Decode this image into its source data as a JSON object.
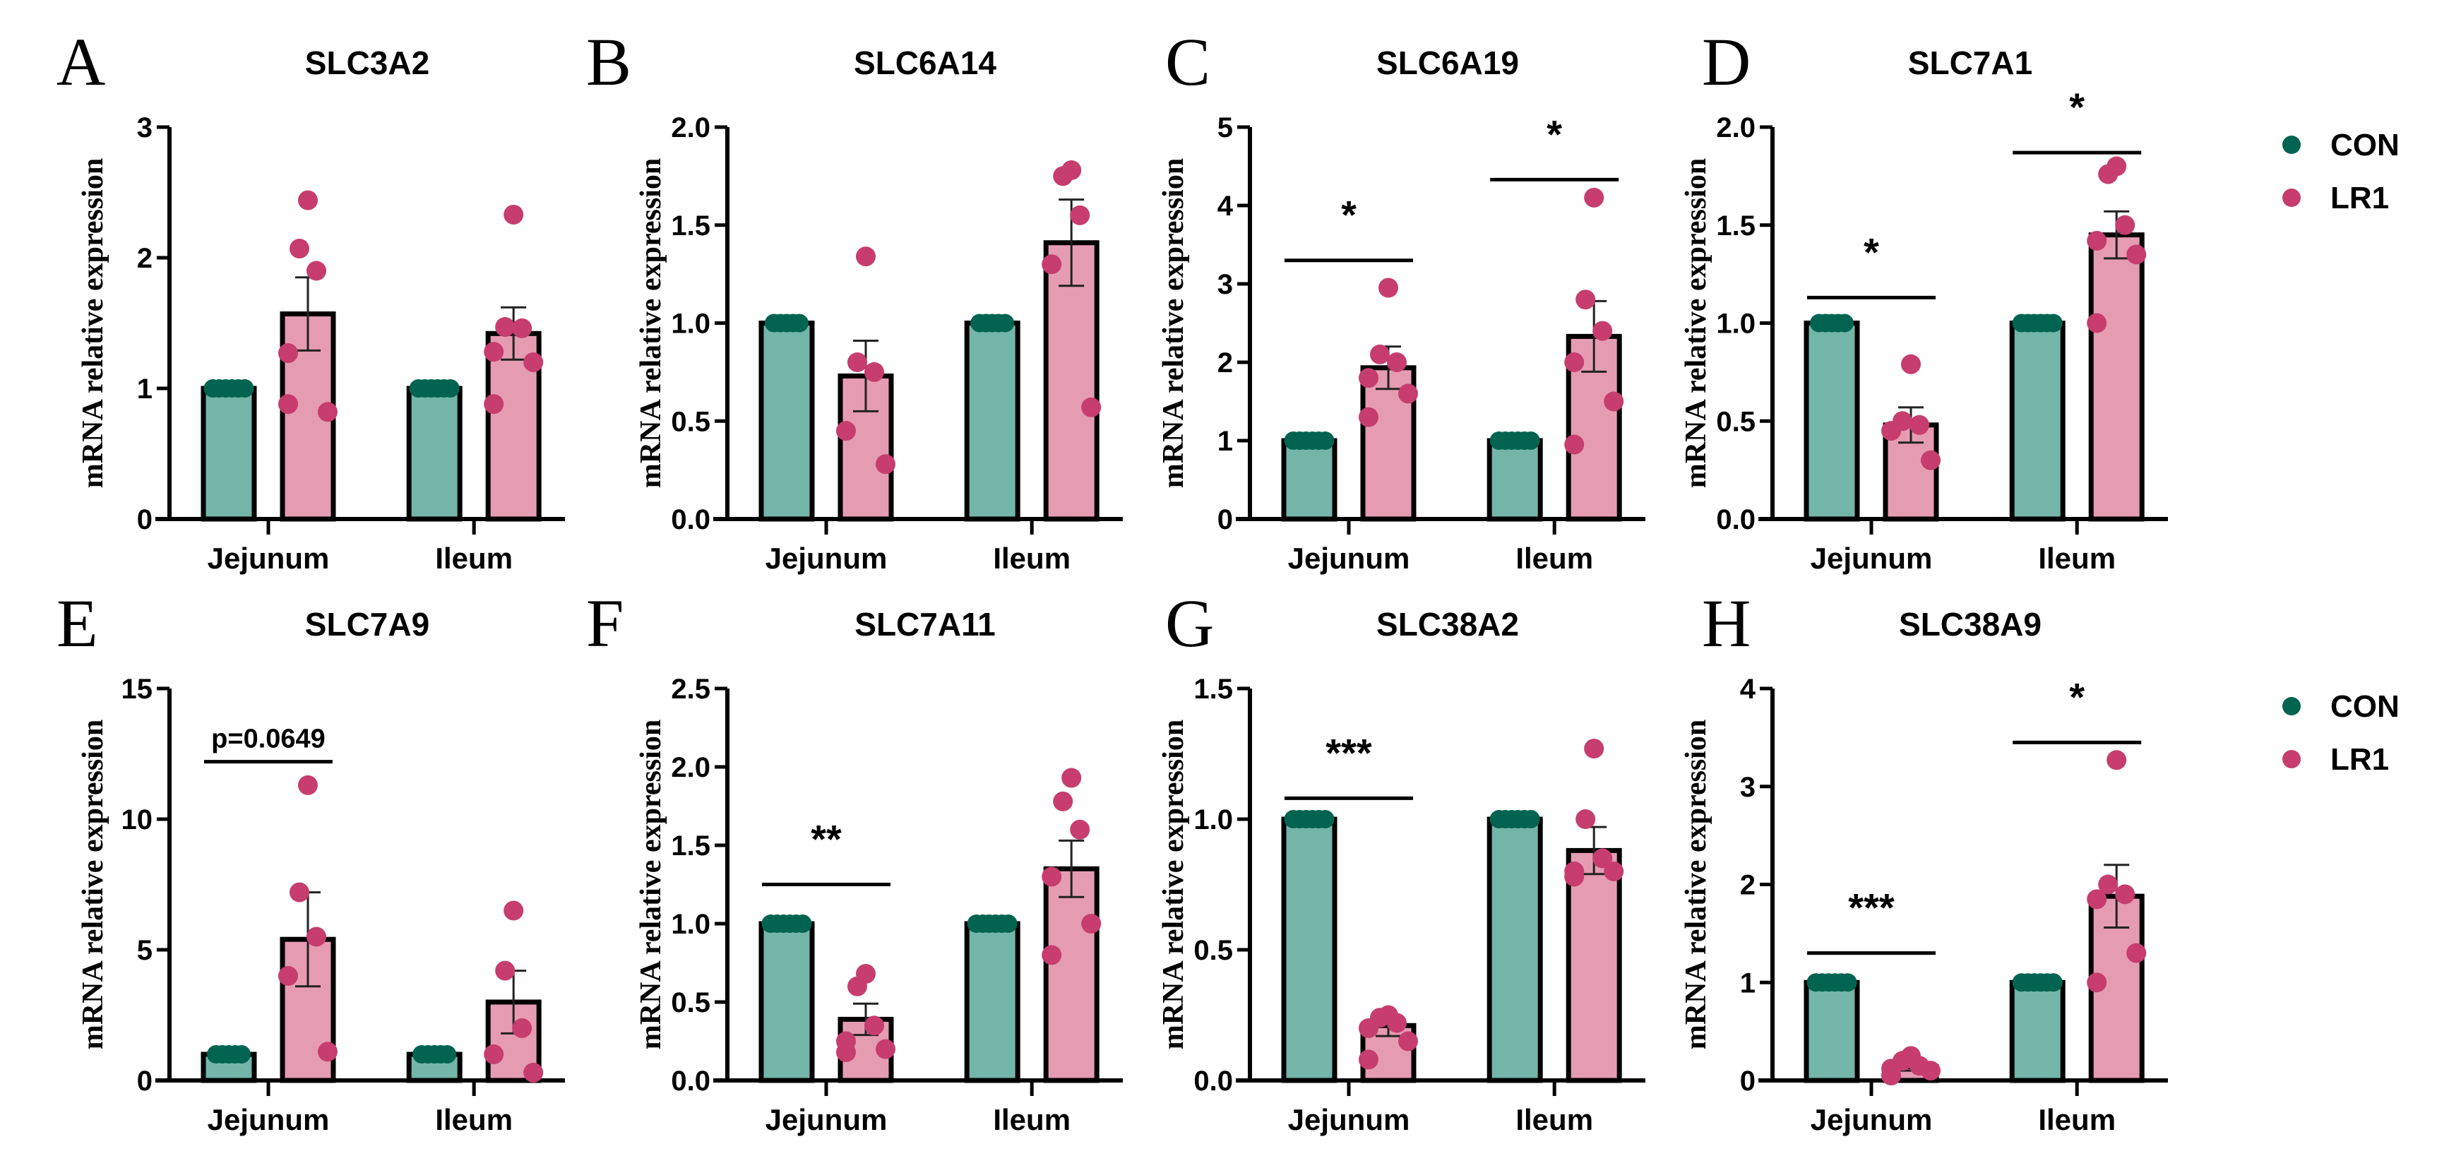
{
  "colors": {
    "con_bar": "#74b5a9",
    "con_dot": "#006450",
    "lr1_bar": "#e59cb2",
    "lr1_dot": "#c63d6e",
    "axis": "#000000"
  },
  "legend": [
    {
      "label": "CON"
    },
    {
      "label": "LR1"
    }
  ],
  "chart_data": [
    {
      "panel": "A",
      "type": "bar",
      "title": "SLC3A2",
      "ylabel": "mRNA relative expression",
      "categories": [
        "Jejunum",
        "Ileum"
      ],
      "ylim": [
        0,
        3
      ],
      "yticks": [
        "0",
        "1",
        "2",
        "3"
      ],
      "series": [
        {
          "name": "CON",
          "values": [
            1,
            1
          ],
          "sem": [
            0,
            0
          ],
          "points": [
            [
              1,
              1,
              1,
              1,
              1,
              1
            ],
            [
              1,
              1,
              1,
              1,
              1,
              1
            ]
          ]
        },
        {
          "name": "LR1",
          "values": [
            1.57,
            1.42
          ],
          "sem": [
            0.28,
            0.2
          ],
          "points": [
            [
              2.44,
              2.07,
              1.9,
              1.27,
              0.82,
              0.88
            ],
            [
              2.33,
              1.47,
              1.46,
              1.28,
              1.2,
              0.88
            ]
          ]
        }
      ],
      "annotations": []
    },
    {
      "panel": "B",
      "type": "bar",
      "title": "SLC6A14",
      "ylabel": "mRNA relative expression",
      "categories": [
        "Jejunum",
        "Ileum"
      ],
      "ylim": [
        0,
        2
      ],
      "yticks": [
        "0.0",
        "0.5",
        "1.0",
        "1.5",
        "2.0"
      ],
      "series": [
        {
          "name": "CON",
          "values": [
            1,
            1
          ],
          "sem": [
            0,
            0
          ],
          "points": [
            [
              1,
              1,
              1,
              1,
              1
            ],
            [
              1,
              1,
              1,
              1,
              1
            ]
          ]
        },
        {
          "name": "LR1",
          "values": [
            0.73,
            1.41
          ],
          "sem": [
            0.18,
            0.22
          ],
          "points": [
            [
              1.34,
              0.8,
              0.75,
              0.45,
              0.28
            ],
            [
              1.78,
              1.75,
              1.55,
              1.3,
              0.57
            ]
          ]
        }
      ],
      "annotations": []
    },
    {
      "panel": "C",
      "type": "bar",
      "title": "SLC6A19",
      "ylabel": "mRNA relative expression",
      "categories": [
        "Jejunum",
        "Ileum"
      ],
      "ylim": [
        0,
        5
      ],
      "yticks": [
        "0",
        "1",
        "2",
        "3",
        "4",
        "5"
      ],
      "series": [
        {
          "name": "CON",
          "values": [
            1,
            1
          ],
          "sem": [
            0,
            0
          ],
          "points": [
            [
              1,
              1,
              1,
              1,
              1,
              1
            ],
            [
              1,
              1,
              1,
              1,
              1,
              1
            ]
          ]
        },
        {
          "name": "LR1",
          "values": [
            1.93,
            2.33
          ],
          "sem": [
            0.27,
            0.45
          ],
          "points": [
            [
              2.95,
              2.1,
              2.0,
              1.8,
              1.6,
              1.3
            ],
            [
              4.1,
              2.8,
              2.4,
              2.0,
              1.5,
              0.95
            ]
          ]
        }
      ],
      "annotations": [
        {
          "group": 0,
          "y": 3.3,
          "text": "*"
        },
        {
          "group": 1,
          "y": 4.33,
          "text": "*"
        }
      ]
    },
    {
      "panel": "D",
      "type": "bar",
      "title": "SLC7A1",
      "ylabel": "mRNA relative expression",
      "categories": [
        "Jejunum",
        "Ileum"
      ],
      "ylim": [
        0,
        2
      ],
      "yticks": [
        "0.0",
        "0.5",
        "1.0",
        "1.5",
        "2.0"
      ],
      "series": [
        {
          "name": "CON",
          "values": [
            1,
            1
          ],
          "sem": [
            0,
            0
          ],
          "points": [
            [
              1,
              1,
              1,
              1,
              1
            ],
            [
              1,
              1,
              1,
              1,
              1,
              1
            ]
          ]
        },
        {
          "name": "LR1",
          "values": [
            0.48,
            1.45
          ],
          "sem": [
            0.09,
            0.12
          ],
          "points": [
            [
              0.79,
              0.5,
              0.48,
              0.45,
              0.3
            ],
            [
              1.8,
              1.76,
              1.5,
              1.42,
              1.35,
              1.0
            ]
          ]
        }
      ],
      "annotations": [
        {
          "group": 0,
          "y": 1.13,
          "text": "*"
        },
        {
          "group": 1,
          "y": 1.87,
          "text": "*"
        }
      ]
    },
    {
      "panel": "E",
      "type": "bar",
      "title": "SLC7A9",
      "ylabel": "mRNA relative expression",
      "categories": [
        "Jejunum",
        "Ileum"
      ],
      "ylim": [
        0,
        15
      ],
      "yticks": [
        "0",
        "5",
        "10",
        "15"
      ],
      "series": [
        {
          "name": "CON",
          "values": [
            1,
            1
          ],
          "sem": [
            0,
            0
          ],
          "points": [
            [
              1,
              1,
              1,
              1,
              1
            ],
            [
              1,
              1,
              1,
              1,
              1
            ]
          ]
        },
        {
          "name": "LR1",
          "values": [
            5.4,
            3.0
          ],
          "sem": [
            1.8,
            1.2
          ],
          "points": [
            [
              11.3,
              7.2,
              5.5,
              4.0,
              1.1
            ],
            [
              6.5,
              4.2,
              2.0,
              1.0,
              0.3
            ]
          ]
        }
      ],
      "annotations": [
        {
          "group": 0,
          "y": 12.2,
          "text": "p=0.0649"
        }
      ]
    },
    {
      "panel": "F",
      "type": "bar",
      "title": "SLC7A11",
      "ylabel": "mRNA relative expression",
      "categories": [
        "Jejunum",
        "Ileum"
      ],
      "ylim": [
        0,
        2.5
      ],
      "yticks": [
        "0.0",
        "0.5",
        "1.0",
        "1.5",
        "2.0",
        "2.5"
      ],
      "series": [
        {
          "name": "CON",
          "values": [
            1,
            1
          ],
          "sem": [
            0,
            0
          ],
          "points": [
            [
              1,
              1,
              1,
              1,
              1,
              1
            ],
            [
              1,
              1,
              1,
              1,
              1,
              1
            ]
          ]
        },
        {
          "name": "LR1",
          "values": [
            0.39,
            1.35
          ],
          "sem": [
            0.1,
            0.18
          ],
          "points": [
            [
              0.68,
              0.6,
              0.35,
              0.25,
              0.2,
              0.18
            ],
            [
              1.93,
              1.78,
              1.6,
              1.3,
              1.0,
              0.8
            ]
          ]
        }
      ],
      "annotations": [
        {
          "group": 0,
          "y": 1.25,
          "text": "**"
        }
      ]
    },
    {
      "panel": "G",
      "type": "bar",
      "title": "SLC38A2",
      "ylabel": "mRNA relative expression",
      "categories": [
        "Jejunum",
        "Ileum"
      ],
      "ylim": [
        0,
        1.5
      ],
      "yticks": [
        "0.0",
        "0.5",
        "1.0",
        "1.5"
      ],
      "series": [
        {
          "name": "CON",
          "values": [
            1,
            1
          ],
          "sem": [
            0,
            0
          ],
          "points": [
            [
              1,
              1,
              1,
              1,
              1,
              1
            ],
            [
              1,
              1,
              1,
              1,
              1,
              1
            ]
          ]
        },
        {
          "name": "LR1",
          "values": [
            0.21,
            0.88
          ],
          "sem": [
            0.04,
            0.09
          ],
          "points": [
            [
              0.25,
              0.24,
              0.22,
              0.2,
              0.15,
              0.08
            ],
            [
              1.27,
              1.0,
              0.85,
              0.8,
              0.8,
              0.78
            ]
          ]
        }
      ],
      "annotations": [
        {
          "group": 0,
          "y": 1.08,
          "text": "***"
        }
      ]
    },
    {
      "panel": "H",
      "type": "bar",
      "title": "SLC38A9",
      "ylabel": "mRNA relative expression",
      "categories": [
        "Jejunum",
        "Ileum"
      ],
      "ylim": [
        0,
        4
      ],
      "yticks": [
        "0",
        "1",
        "2",
        "3",
        "4"
      ],
      "series": [
        {
          "name": "CON",
          "values": [
            1,
            1
          ],
          "sem": [
            0,
            0
          ],
          "points": [
            [
              1,
              1,
              1,
              1,
              1,
              1
            ],
            [
              1,
              1,
              1,
              1,
              1,
              1
            ]
          ]
        },
        {
          "name": "LR1",
          "values": [
            0.14,
            1.88
          ],
          "sem": [
            0.04,
            0.32
          ],
          "points": [
            [
              0.25,
              0.2,
              0.15,
              0.12,
              0.1,
              0.05
            ],
            [
              3.27,
              2.0,
              1.9,
              1.85,
              1.3,
              1.0
            ]
          ]
        }
      ],
      "annotations": [
        {
          "group": 0,
          "y": 1.3,
          "text": "***"
        },
        {
          "group": 1,
          "y": 3.45,
          "text": "*"
        }
      ]
    }
  ]
}
